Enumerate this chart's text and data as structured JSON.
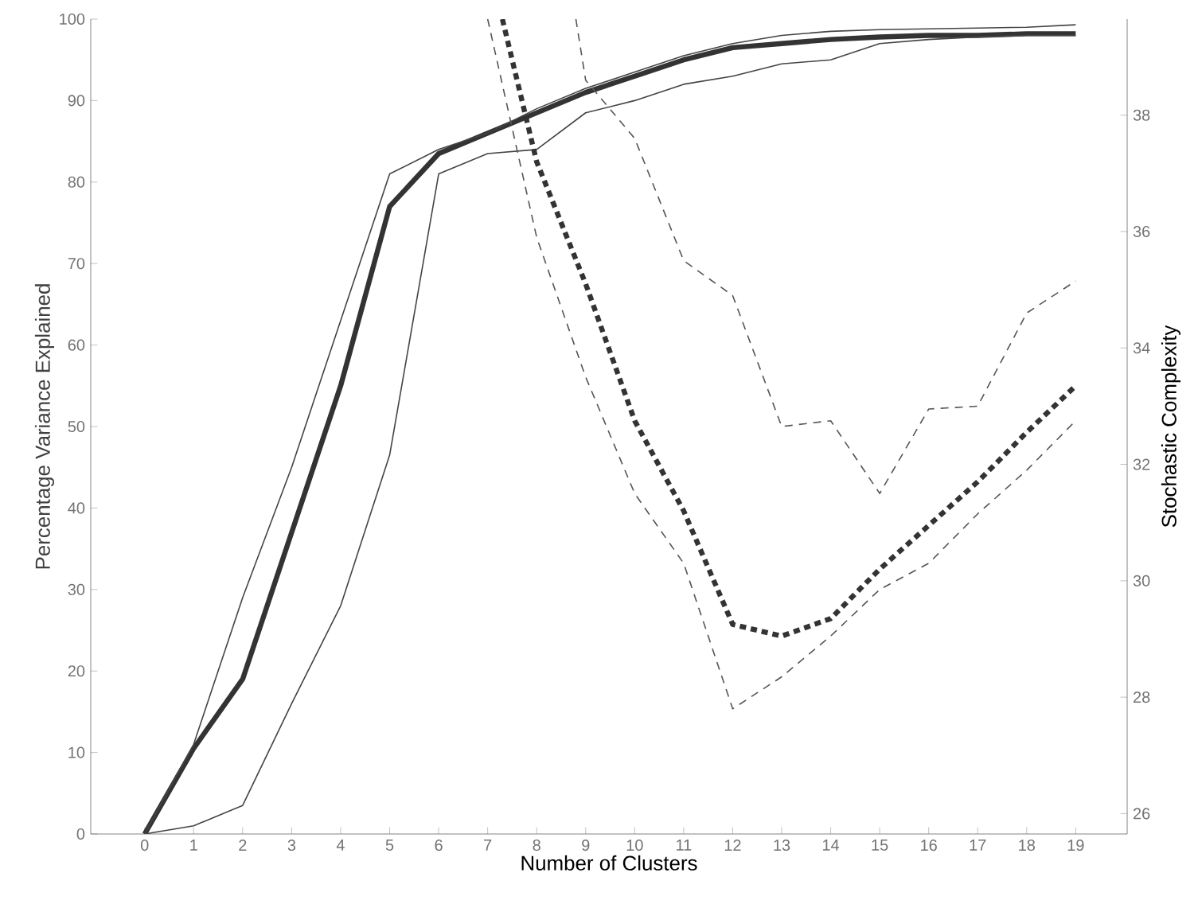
{
  "chart_data": {
    "type": "line",
    "xlabel": "Number of Clusters",
    "ylabel": "Percentage Variance Explained",
    "y2label": "Stochastic Complexity",
    "xlim": [
      -1.1,
      20.05
    ],
    "xticks": [
      0,
      1,
      2,
      3,
      4,
      5,
      6,
      7,
      8,
      9,
      10,
      11,
      12,
      13,
      14,
      15,
      16,
      17,
      18,
      19
    ],
    "ylim": [
      0,
      100
    ],
    "yticks": [
      0,
      10,
      20,
      30,
      40,
      50,
      60,
      70,
      80,
      90,
      100
    ],
    "y2lim": [
      25.65,
      39.65
    ],
    "y2ticks": [
      26,
      28,
      30,
      32,
      34,
      36,
      38
    ],
    "marker": "none",
    "series": [
      {
        "color": "#333333",
        "line_style": "solid",
        "x": [
          0,
          1,
          2,
          3,
          4,
          5,
          6,
          7,
          8,
          9,
          10,
          11,
          12,
          13,
          14,
          15,
          16,
          17,
          18,
          19
        ],
        "values": [
          0,
          10.5,
          19,
          37,
          55,
          77,
          83.5,
          86,
          88.5,
          91,
          93,
          95,
          96.5,
          97,
          97.5,
          97.8,
          98,
          98,
          98.2,
          98.2
        ]
      },
      {
        "color": "#444444",
        "line_style": "solid",
        "x": [
          0,
          1,
          2,
          3,
          4,
          5,
          6,
          7,
          8,
          9,
          10,
          11,
          12,
          13,
          14,
          15,
          16,
          17,
          18,
          19
        ],
        "values": [
          0,
          11,
          29,
          45,
          63,
          81,
          84,
          86,
          89,
          91.5,
          93.5,
          95.5,
          97,
          98,
          98.5,
          98.7,
          98.8,
          98.9,
          99,
          99.3
        ]
      },
      {
        "color": "#444444",
        "line_style": "solid",
        "x": [
          0,
          1,
          2,
          3,
          4,
          5,
          6,
          7,
          8,
          9,
          10,
          11,
          12,
          13,
          14,
          15,
          16,
          17,
          18,
          19
        ],
        "values": [
          0,
          1,
          3.5,
          16,
          28,
          46.5,
          81,
          83.5,
          84,
          88.5,
          90,
          92,
          93,
          94.5,
          95,
          97,
          97.5,
          97.8,
          98,
          98
        ]
      },
      {
        "color": "#333333",
        "line_style": "dashed",
        "axis": "y2",
        "x": [
          7.3,
          8,
          9,
          10,
          11,
          12,
          13,
          14,
          15,
          16,
          17,
          18,
          19
        ],
        "values": [
          39.65,
          37.2,
          35.1,
          32.75,
          31.2,
          29.25,
          29.05,
          29.35,
          30.2,
          30.95,
          31.7,
          32.55,
          33.35
        ]
      },
      {
        "color": "#555555",
        "line_style": "dashed",
        "axis": "y2",
        "x": [
          8.8,
          9,
          10,
          11,
          12,
          13,
          14,
          15,
          16,
          17,
          18,
          19
        ],
        "values": [
          39.65,
          38.6,
          37.6,
          35.5,
          34.9,
          32.65,
          32.75,
          31.5,
          32.95,
          33,
          34.6,
          35.15
        ]
      },
      {
        "color": "#555555",
        "line_style": "dashed",
        "axis": "y2",
        "x": [
          7,
          8,
          9,
          10,
          11,
          12,
          13,
          14,
          15,
          16,
          17,
          18,
          19
        ],
        "values": [
          39.65,
          35.9,
          33.5,
          31.5,
          30.3,
          27.8,
          28.35,
          29.05,
          29.85,
          30.3,
          31.15,
          31.9,
          32.75
        ]
      }
    ]
  }
}
